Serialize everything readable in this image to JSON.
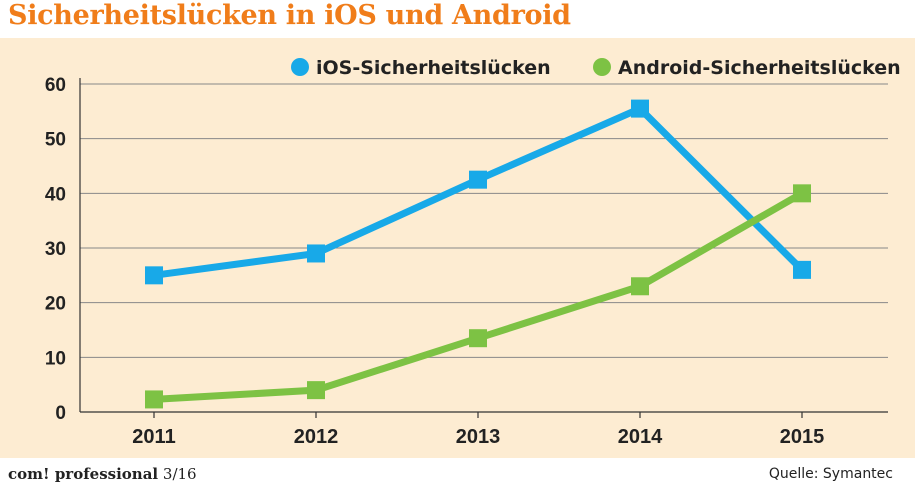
{
  "title": "Sicherheitslücken in iOS und Android",
  "colors": {
    "title": "#f07d1a",
    "background": "#fdecd2",
    "ios": "#18a9e8",
    "android": "#7dc244",
    "grid": "#888888"
  },
  "chart_data": {
    "type": "line",
    "title": "Sicherheitslücken in iOS und Android",
    "xlabel": "",
    "ylabel": "",
    "categories": [
      "2011",
      "2012",
      "2013",
      "2014",
      "2015"
    ],
    "ylim": [
      0,
      60
    ],
    "yticks": [
      0,
      10,
      20,
      30,
      40,
      50,
      60
    ],
    "grid": true,
    "legend_position": "top-right",
    "series": [
      {
        "name": "iOS-Sicherheitslücken",
        "values": [
          25,
          29,
          42.5,
          55.5,
          26
        ],
        "color": "#18a9e8"
      },
      {
        "name": "Android-Sicherheitslücken",
        "values": [
          2.3,
          4,
          13.5,
          23,
          40
        ],
        "color": "#7dc244"
      }
    ]
  },
  "footer": {
    "brand": "com! professional",
    "issue": "3/16",
    "source": "Quelle: Symantec"
  }
}
